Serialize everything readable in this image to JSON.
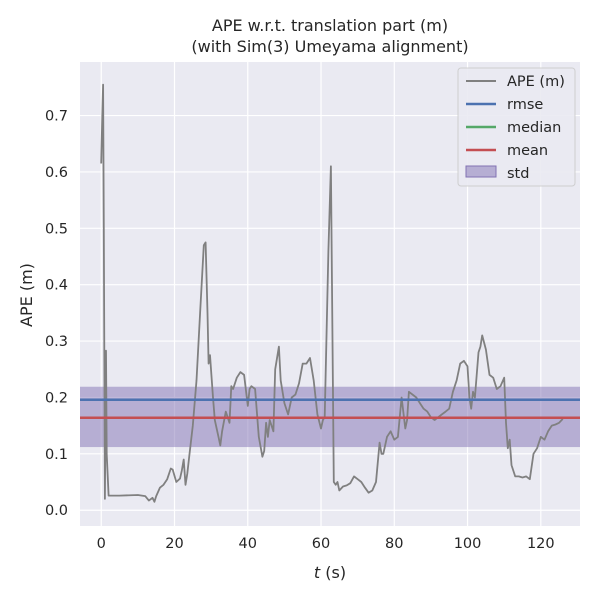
{
  "chart_data": {
    "type": "line",
    "title": "APE w.r.t. translation part (m)",
    "subtitle": "(with Sim(3) Umeyama alignment)",
    "xlabel_italic": "t",
    "xlabel_rest": " (s)",
    "ylabel": "APE (m)",
    "xlim": [
      -5.8,
      130.7
    ],
    "ylim": [
      -0.028,
      0.795
    ],
    "xticks": [
      0,
      20,
      40,
      60,
      80,
      100,
      120
    ],
    "yticks": [
      0.0,
      0.1,
      0.2,
      0.3,
      0.4,
      0.5,
      0.6,
      0.7
    ],
    "xtick_labels": [
      "0",
      "20",
      "40",
      "60",
      "80",
      "100",
      "120"
    ],
    "ytick_labels": [
      "0.0",
      "0.1",
      "0.2",
      "0.3",
      "0.4",
      "0.5",
      "0.6",
      "0.7"
    ],
    "grid": true,
    "legend_position": "top-right",
    "legend": {
      "ape": "APE (m)",
      "rmse": "rmse",
      "median": "median",
      "mean": "mean",
      "std": "std"
    },
    "colors": {
      "ape": "#808080",
      "rmse": "#4c72b0",
      "median": "#55a868",
      "mean": "#c44e52",
      "std": "#8172b3",
      "background": "#eaeaf2",
      "grid": "#ffffff"
    },
    "stats": {
      "rmse": 0.196,
      "median": 0.164,
      "mean": 0.164,
      "std_band": [
        0.112,
        0.219
      ]
    },
    "series": [
      {
        "name": "APE (m)",
        "points": [
          [
            0.0,
            0.615
          ],
          [
            0.3,
            0.7
          ],
          [
            0.5,
            0.755
          ],
          [
            0.7,
            0.5
          ],
          [
            0.9,
            0.2
          ],
          [
            1.0,
            0.02
          ],
          [
            1.3,
            0.283
          ],
          [
            1.5,
            0.1
          ],
          [
            2.0,
            0.026
          ],
          [
            5.0,
            0.026
          ],
          [
            10.0,
            0.027
          ],
          [
            12.0,
            0.025
          ],
          [
            13.0,
            0.017
          ],
          [
            14.0,
            0.022
          ],
          [
            14.5,
            0.015
          ],
          [
            15.0,
            0.025
          ],
          [
            16.0,
            0.04
          ],
          [
            17.0,
            0.045
          ],
          [
            18.0,
            0.055
          ],
          [
            19.0,
            0.074
          ],
          [
            19.5,
            0.072
          ],
          [
            20.5,
            0.05
          ],
          [
            21.5,
            0.056
          ],
          [
            22.0,
            0.07
          ],
          [
            22.5,
            0.09
          ],
          [
            23.0,
            0.045
          ],
          [
            23.5,
            0.065
          ],
          [
            24.0,
            0.095
          ],
          [
            25.0,
            0.15
          ],
          [
            26.0,
            0.23
          ],
          [
            27.0,
            0.35
          ],
          [
            28.0,
            0.47
          ],
          [
            28.5,
            0.475
          ],
          [
            29.0,
            0.35
          ],
          [
            29.3,
            0.26
          ],
          [
            29.7,
            0.275
          ],
          [
            30.5,
            0.2
          ],
          [
            31.0,
            0.16
          ],
          [
            32.0,
            0.13
          ],
          [
            32.5,
            0.115
          ],
          [
            33.0,
            0.14
          ],
          [
            34.0,
            0.175
          ],
          [
            35.0,
            0.155
          ],
          [
            35.5,
            0.22
          ],
          [
            36.0,
            0.215
          ],
          [
            37.0,
            0.235
          ],
          [
            38.0,
            0.245
          ],
          [
            39.0,
            0.24
          ],
          [
            40.0,
            0.185
          ],
          [
            40.5,
            0.215
          ],
          [
            41.0,
            0.22
          ],
          [
            42.0,
            0.215
          ],
          [
            43.0,
            0.13
          ],
          [
            44.0,
            0.095
          ],
          [
            44.5,
            0.105
          ],
          [
            45.0,
            0.155
          ],
          [
            45.5,
            0.13
          ],
          [
            46.0,
            0.16
          ],
          [
            47.0,
            0.14
          ],
          [
            47.5,
            0.25
          ],
          [
            48.5,
            0.29
          ],
          [
            49.0,
            0.23
          ],
          [
            50.0,
            0.19
          ],
          [
            51.0,
            0.17
          ],
          [
            52.0,
            0.2
          ],
          [
            53.0,
            0.205
          ],
          [
            54.0,
            0.225
          ],
          [
            55.0,
            0.26
          ],
          [
            56.0,
            0.26
          ],
          [
            57.0,
            0.27
          ],
          [
            58.0,
            0.23
          ],
          [
            59.0,
            0.17
          ],
          [
            60.0,
            0.145
          ],
          [
            60.5,
            0.16
          ],
          [
            61.0,
            0.165
          ],
          [
            62.0,
            0.46
          ],
          [
            62.7,
            0.61
          ],
          [
            63.5,
            0.05
          ],
          [
            64.0,
            0.045
          ],
          [
            64.5,
            0.05
          ],
          [
            65.0,
            0.035
          ],
          [
            66.0,
            0.042
          ],
          [
            67.0,
            0.044
          ],
          [
            68.0,
            0.048
          ],
          [
            69.0,
            0.06
          ],
          [
            70.0,
            0.055
          ],
          [
            71.0,
            0.05
          ],
          [
            72.0,
            0.04
          ],
          [
            73.0,
            0.031
          ],
          [
            74.0,
            0.035
          ],
          [
            75.0,
            0.05
          ],
          [
            76.0,
            0.12
          ],
          [
            76.5,
            0.1
          ],
          [
            77.0,
            0.1
          ],
          [
            78.0,
            0.13
          ],
          [
            79.0,
            0.14
          ],
          [
            80.0,
            0.125
          ],
          [
            81.0,
            0.13
          ],
          [
            82.0,
            0.2
          ],
          [
            83.0,
            0.145
          ],
          [
            83.5,
            0.16
          ],
          [
            84.0,
            0.21
          ],
          [
            85.0,
            0.205
          ],
          [
            86.0,
            0.2
          ],
          [
            87.0,
            0.19
          ],
          [
            88.0,
            0.18
          ],
          [
            89.0,
            0.175
          ],
          [
            90.0,
            0.165
          ],
          [
            91.0,
            0.16
          ],
          [
            92.0,
            0.165
          ],
          [
            93.0,
            0.17
          ],
          [
            94.0,
            0.175
          ],
          [
            95.0,
            0.18
          ],
          [
            96.0,
            0.21
          ],
          [
            97.0,
            0.23
          ],
          [
            98.0,
            0.26
          ],
          [
            99.0,
            0.265
          ],
          [
            100.0,
            0.255
          ],
          [
            100.5,
            0.2
          ],
          [
            101.0,
            0.18
          ],
          [
            101.5,
            0.21
          ],
          [
            102.0,
            0.2
          ],
          [
            103.0,
            0.28
          ],
          [
            103.5,
            0.29
          ],
          [
            104.0,
            0.31
          ],
          [
            105.0,
            0.285
          ],
          [
            106.0,
            0.24
          ],
          [
            107.0,
            0.235
          ],
          [
            108.0,
            0.215
          ],
          [
            109.0,
            0.22
          ],
          [
            110.0,
            0.235
          ],
          [
            110.5,
            0.155
          ],
          [
            111.0,
            0.11
          ],
          [
            111.5,
            0.125
          ],
          [
            112.0,
            0.08
          ],
          [
            113.0,
            0.06
          ],
          [
            114.0,
            0.06
          ],
          [
            115.0,
            0.058
          ],
          [
            116.0,
            0.06
          ],
          [
            117.0,
            0.055
          ],
          [
            118.0,
            0.1
          ],
          [
            119.0,
            0.11
          ],
          [
            120.0,
            0.13
          ],
          [
            121.0,
            0.125
          ],
          [
            122.0,
            0.14
          ],
          [
            123.0,
            0.15
          ],
          [
            124.0,
            0.152
          ],
          [
            125.0,
            0.155
          ],
          [
            126.0,
            0.162
          ]
        ]
      }
    ]
  }
}
